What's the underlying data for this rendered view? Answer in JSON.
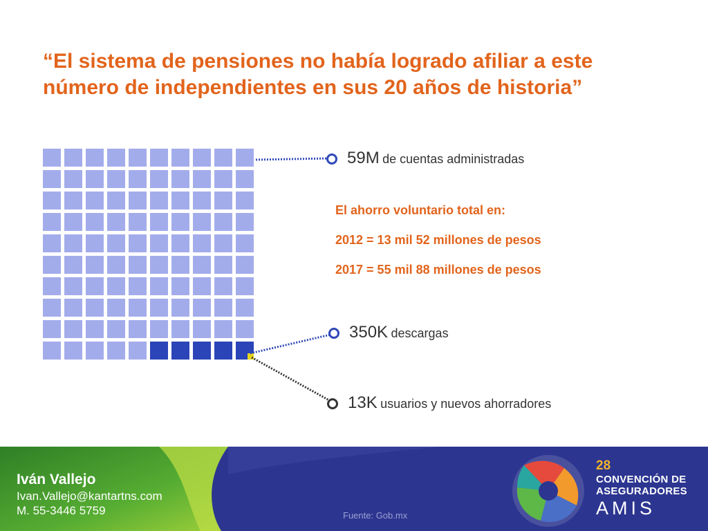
{
  "title": "“El sistema de pensiones no había logrado afiliar a este número de independientes en sus 20 años de historia”",
  "waffle": {
    "rows": 10,
    "cols": 10,
    "dark_cells": 5,
    "highlight_cells": 1,
    "colors": {
      "light": "#a3aceb",
      "dark": "#2b44b8",
      "highlight": "#e8d51a"
    }
  },
  "stats": [
    {
      "value": "59M",
      "label": "de cuentas administradas",
      "ring_color": "#2f49b7"
    },
    {
      "value": "350K",
      "label": "descargas",
      "ring_color": "#2f49b7"
    },
    {
      "value": "13K",
      "label": "usuarios y nuevos ahorradores",
      "ring_color": "#333333"
    }
  ],
  "savings": {
    "heading": "El ahorro voluntario total en:",
    "line_2012": "2012 = 13 mil 52 millones de pesos",
    "line_2017": "2017 = 55 mil 88 millones de pesos"
  },
  "footer": {
    "author_name": "Iván Vallejo",
    "author_email": "Ivan.Vallejo@kantartns.com",
    "author_phone": "M. 55-3446 5759",
    "source": "Fuente: Gob.mx",
    "brand_number": "28",
    "brand_line1": "CONVENCIÓN DE",
    "brand_line2": "ASEGURADORES",
    "brand_line3": "AMIS"
  },
  "colors": {
    "accent_orange": "#e2641c",
    "navy": "#2c3590",
    "green": "#3e9a2e"
  }
}
